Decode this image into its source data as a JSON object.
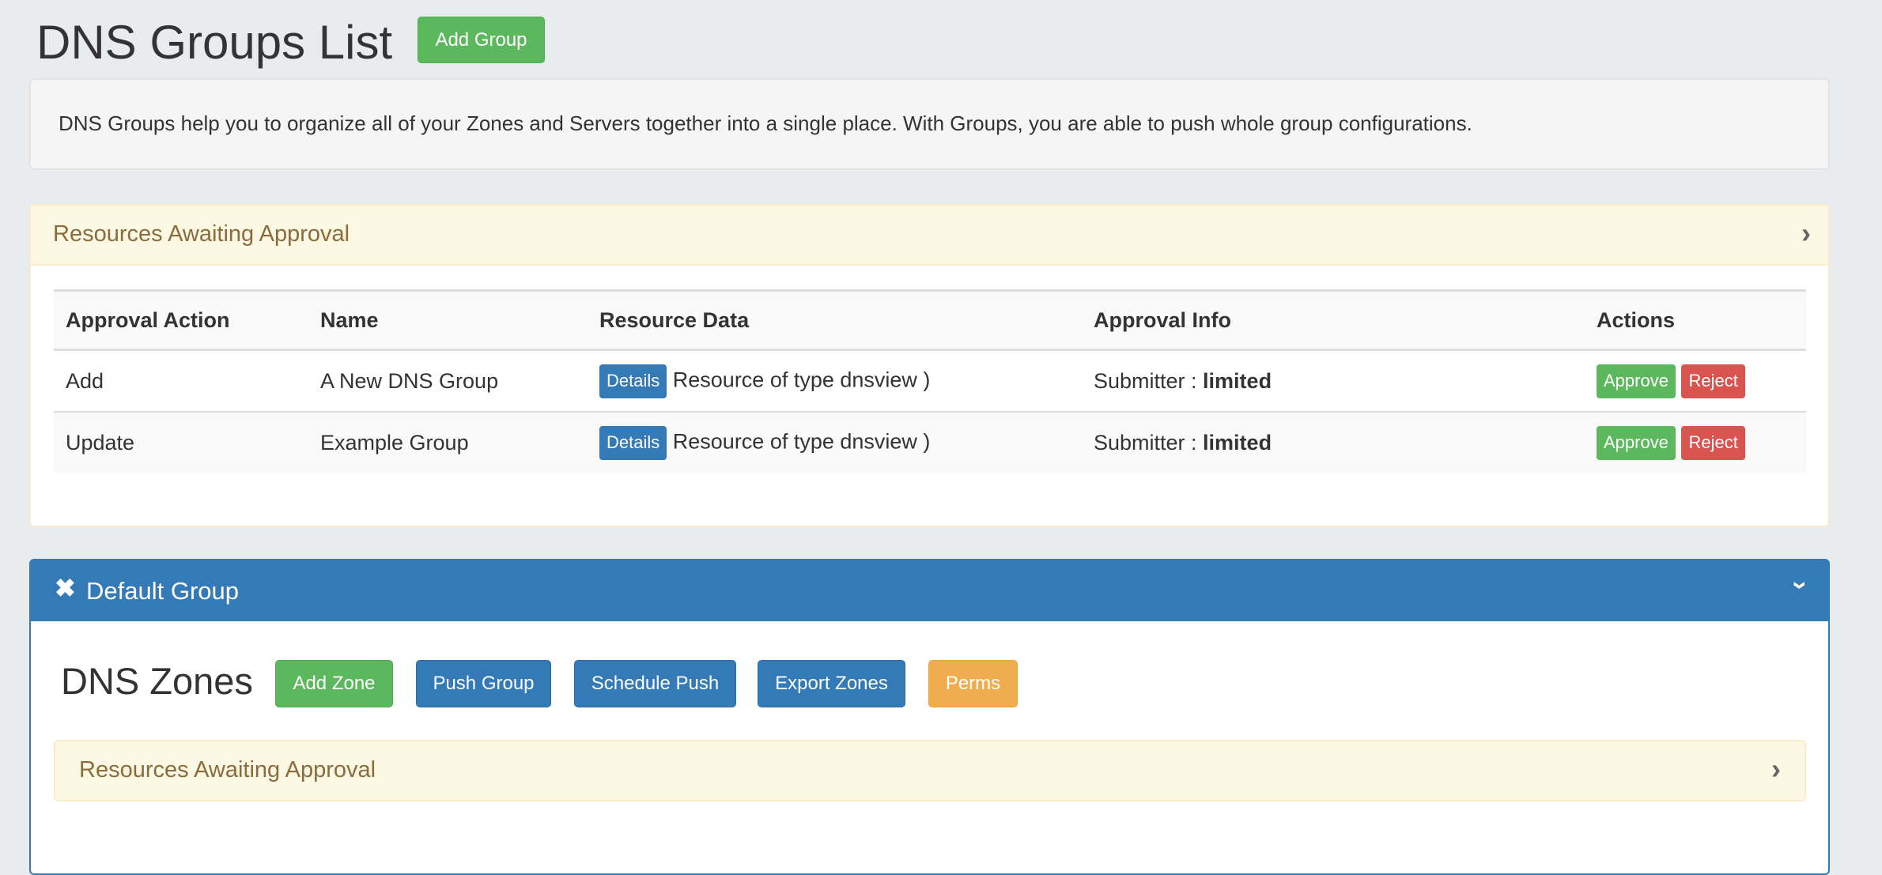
{
  "page": {
    "title": "DNS Groups List",
    "add_group": "Add Group"
  },
  "description": "DNS Groups help you to organize all of your Zones and Servers together into a single place. With Groups, you are able to push whole group configurations.",
  "approval_panel": {
    "title": "Resources Awaiting Approval",
    "columns": [
      "Approval Action",
      "Name",
      "Resource Data",
      "Approval Info",
      "Actions"
    ],
    "rows": [
      {
        "action": "Add",
        "name": "A New DNS Group",
        "details": "Details",
        "resource": "Resource of type dnsview )",
        "info_label": "Submitter : ",
        "submitter": "limited",
        "approve": "Approve",
        "reject": "Reject"
      },
      {
        "action": "Update",
        "name": "Example Group",
        "details": "Details",
        "resource": "Resource of type dnsview )",
        "info_label": "Submitter : ",
        "submitter": "limited",
        "approve": "Approve",
        "reject": "Reject"
      }
    ]
  },
  "group_panel": {
    "icon": "close-icon",
    "title": "Default Group",
    "zones_title": "DNS Zones",
    "buttons": {
      "add_zone": "Add Zone",
      "push_group": "Push Group",
      "schedule_push": "Schedule Push",
      "export_zones": "Export Zones",
      "perms": "Perms"
    },
    "approval_title": "Resources Awaiting Approval"
  },
  "colors": {
    "primary": "#337ab7",
    "success": "#5cb85c",
    "danger": "#d9534f",
    "warning": "#f0ad4e",
    "warning_bg": "#fcf8e3",
    "warning_text": "#8a6d3b"
  }
}
